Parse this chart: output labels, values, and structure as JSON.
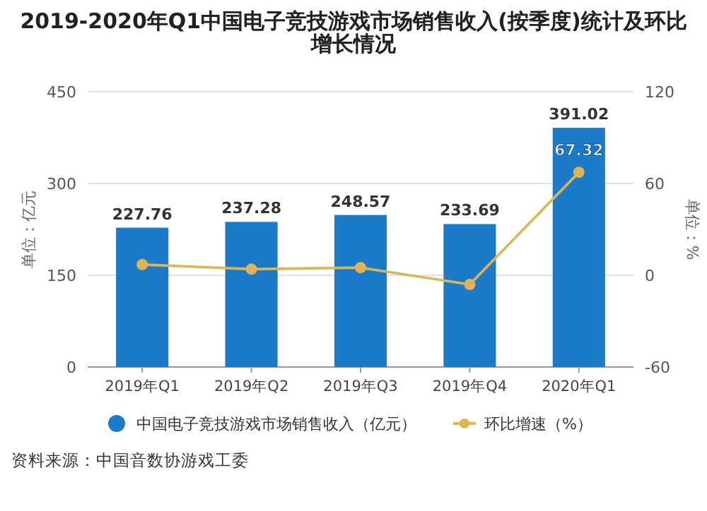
{
  "chart_data": {
    "type": "bar",
    "title": "2019-2020年Q1中国电子竞技游戏市场销售收入(按季度)统计及环比增长情况",
    "categories": [
      "2019年Q1",
      "2019年Q2",
      "2019年Q3",
      "2019年Q4",
      "2020年Q1"
    ],
    "series": [
      {
        "name": "中国电子竞技游戏市场销售收入（亿元）",
        "color": "#1b7bc9",
        "values": [
          227.76,
          237.28,
          248.57,
          233.69,
          391.02
        ],
        "value_labels": [
          "227.76",
          "237.28",
          "248.57",
          "233.69",
          "391.02"
        ]
      },
      {
        "name": "环比增速（%）",
        "type": "line",
        "axis": "y2",
        "color": "#e0b550",
        "marker": "circle",
        "values": [
          7,
          4,
          5,
          -6,
          67.32
        ],
        "value_labels": [
          null,
          null,
          null,
          null,
          "67.32"
        ]
      }
    ],
    "ylabel": "单位：亿元",
    "y2label": "单位：%",
    "ylim": [
      0,
      450
    ],
    "yticks": [
      0,
      150,
      300,
      450
    ],
    "y2lim": [
      -60,
      120
    ],
    "y2ticks": [
      -60,
      0,
      60,
      120
    ],
    "grid": "y",
    "legend": "bottom",
    "annotations": [
      "资料来源：中国音数协游戏工委"
    ]
  }
}
